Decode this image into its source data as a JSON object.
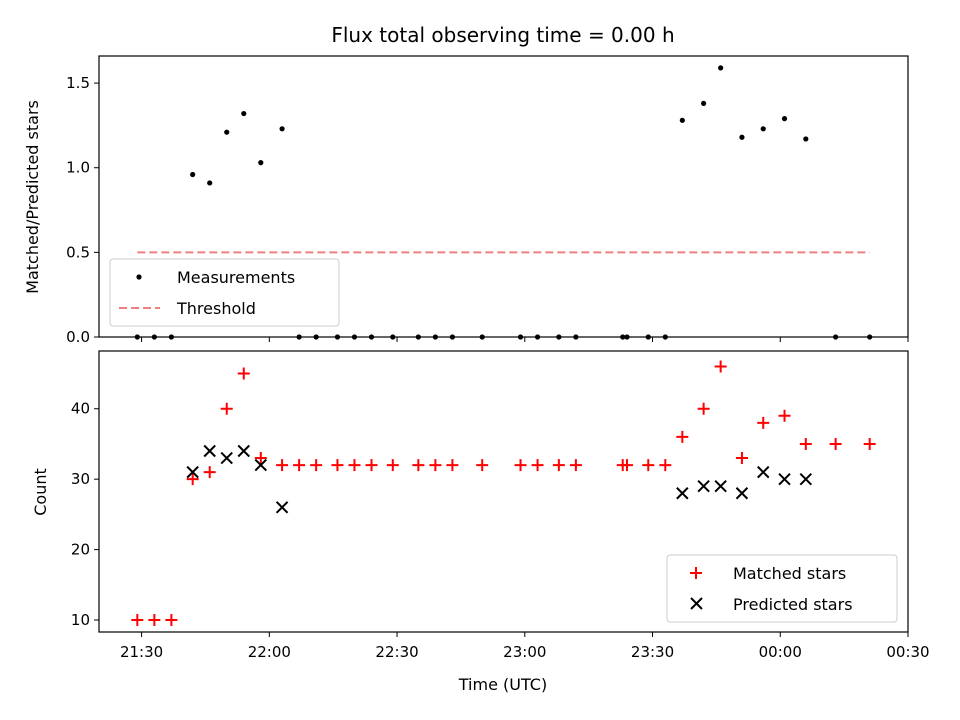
{
  "chart_data": [
    {
      "type": "scatter",
      "title": "Flux total observing time = 0.00 h",
      "ylabel": "Matched/Predicted stars",
      "xlabel": "",
      "ylim": [
        0,
        1.66
      ],
      "yticks": [
        0.0,
        0.5,
        1.0,
        1.5
      ],
      "ytick_labels": [
        "0.0",
        "0.5",
        "1.0",
        "1.5"
      ],
      "legend_position": "lower-left",
      "series": [
        {
          "name": "Measurements",
          "kind": "dots",
          "color": "#000000",
          "x": [
            "21:29",
            "21:33",
            "21:37",
            "21:42",
            "21:46",
            "21:50",
            "21:54",
            "21:58",
            "22:03",
            "22:07",
            "22:11",
            "22:16",
            "22:20",
            "22:24",
            "22:29",
            "22:35",
            "22:39",
            "22:43",
            "22:50",
            "22:59",
            "23:03",
            "23:08",
            "23:12",
            "23:23",
            "23:24",
            "23:29",
            "23:33",
            "23:37",
            "23:42",
            "23:46",
            "23:51",
            "23:56",
            "24:01",
            "24:06",
            "24:13",
            "24:21"
          ],
          "y": [
            0.0,
            0.0,
            0.0,
            0.96,
            0.91,
            1.21,
            1.32,
            1.03,
            1.23,
            0.0,
            0.0,
            0.0,
            0.0,
            0.0,
            0.0,
            0.0,
            0.0,
            0.0,
            0.0,
            0.0,
            0.0,
            0.0,
            0.0,
            0.0,
            0.0,
            0.0,
            0.0,
            1.28,
            1.38,
            1.59,
            1.18,
            1.23,
            1.29,
            1.17,
            0.0,
            0.0
          ]
        },
        {
          "name": "Threshold",
          "kind": "dashed-line",
          "color": "#f08080",
          "x": [
            "21:29",
            "24:21"
          ],
          "y": [
            0.5,
            0.5
          ]
        }
      ]
    },
    {
      "type": "scatter",
      "title": "",
      "ylabel": "Count",
      "xlabel": "Time (UTC)",
      "ylim": [
        8.3,
        48.2
      ],
      "yticks": [
        10,
        20,
        30,
        40
      ],
      "ytick_labels": [
        "10",
        "20",
        "30",
        "40"
      ],
      "xlim": [
        "21:20",
        "24:30"
      ],
      "xticks": [
        "21:30",
        "22:00",
        "22:30",
        "23:00",
        "23:30",
        "24:00",
        "24:30"
      ],
      "xtick_labels": [
        "21:30",
        "22:00",
        "22:30",
        "23:00",
        "23:30",
        "00:00",
        "00:30"
      ],
      "legend_position": "lower-right",
      "series": [
        {
          "name": "Matched stars",
          "kind": "plus",
          "color": "#ff0000",
          "x": [
            "21:29",
            "21:33",
            "21:37",
            "21:42",
            "21:46",
            "21:50",
            "21:54",
            "21:58",
            "22:03",
            "22:07",
            "22:11",
            "22:16",
            "22:20",
            "22:24",
            "22:29",
            "22:35",
            "22:39",
            "22:43",
            "22:50",
            "22:59",
            "23:03",
            "23:08",
            "23:12",
            "23:23",
            "23:24",
            "23:29",
            "23:33",
            "23:37",
            "23:42",
            "23:46",
            "23:51",
            "23:56",
            "24:01",
            "24:06",
            "24:13",
            "24:21"
          ],
          "y": [
            10,
            10,
            10,
            30,
            31,
            40,
            45,
            33,
            32,
            32,
            32,
            32,
            32,
            32,
            32,
            32,
            32,
            32,
            32,
            32,
            32,
            32,
            32,
            32,
            32,
            32,
            32,
            36,
            40,
            46,
            33,
            38,
            39,
            35,
            35,
            35
          ]
        },
        {
          "name": "Predicted stars",
          "kind": "x",
          "color": "#000000",
          "x": [
            "21:42",
            "21:46",
            "21:50",
            "21:54",
            "21:58",
            "22:03",
            "23:37",
            "23:42",
            "23:46",
            "23:51",
            "23:56",
            "24:01",
            "24:06"
          ],
          "y": [
            31,
            34,
            33,
            34,
            32,
            26,
            28,
            29,
            29,
            28,
            31,
            30,
            30
          ]
        }
      ]
    }
  ]
}
